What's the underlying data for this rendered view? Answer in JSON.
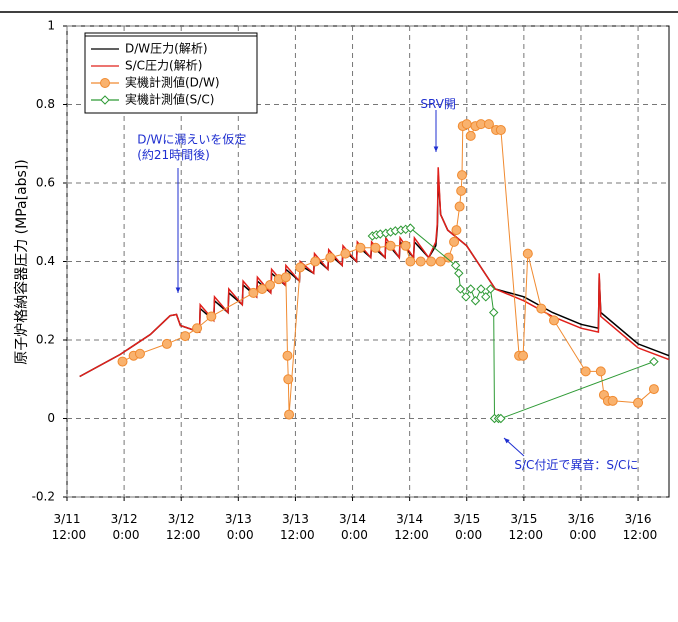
{
  "chart_data": {
    "type": "line",
    "ylabel": "原子炉格納容器圧力 (MPa[abs])",
    "xlim": [
      "3/11 12:00",
      "3/16 18:30"
    ],
    "xticks": [
      "3/11 12:00",
      "3/12 0:00",
      "3/12 12:00",
      "3/13 0:00",
      "3/13 12:00",
      "3/14 0:00",
      "3/14 12:00",
      "3/15 0:00",
      "3/15 12:00",
      "3/16 0:00",
      "3/16 12:00"
    ],
    "ylim": [
      -0.2,
      1
    ],
    "yticks": [
      -0.2,
      0,
      0.2,
      0.4,
      0.6,
      0.8,
      1
    ],
    "grid": true,
    "legend": "upper left",
    "annotations": [
      {
        "text": "SRV開",
        "x": "3/14 18:00",
        "y": 0.8
      },
      {
        "text": "D/Wに漏えいを仮定",
        "x": "3/12 12:00",
        "y": 0.71
      },
      {
        "text": "(約21時間後)",
        "x": "3/12 12:00",
        "y": 0.67
      },
      {
        "text": "S/C付近で異音：S/Cに",
        "x": "3/15 10:00",
        "y": -0.12
      }
    ],
    "series": [
      {
        "name": "D/W圧力(解析)",
        "color": "#000000",
        "marker": null,
        "x": [
          "3/11 14:40",
          "3/11 23:10",
          "3/12 5:30",
          "3/12 9:40",
          "3/12 11:00",
          "3/12 11:50",
          "3/12 15:50",
          "3/12 16:00",
          "3/12 18:50",
          "3/12 19:00",
          "3/12 21:50",
          "3/12 22:00",
          "3/13 0:50",
          "3/13 1:00",
          "3/13 3:50",
          "3/13 4:00",
          "3/13 6:50",
          "3/13 7:00",
          "3/13 9:50",
          "3/13 10:00",
          "3/13 12:50",
          "3/13 13:00",
          "3/13 15:50",
          "3/13 16:00",
          "3/13 18:50",
          "3/13 19:00",
          "3/13 21:50",
          "3/13 22:00",
          "3/14 0:50",
          "3/14 1:00",
          "3/14 3:50",
          "3/14 4:00",
          "3/14 6:50",
          "3/14 7:00",
          "3/14 9:50",
          "3/14 10:00",
          "3/14 12:50",
          "3/14 13:00",
          "3/14 16:00",
          "3/14 17:30",
          "3/14 17:50",
          "3/14 18:00",
          "3/14 18:30",
          "3/14 20:00",
          "3/14 22:00",
          "3/15 0:00",
          "3/15 6:00",
          "3/15 12:00",
          "3/15 18:00",
          "3/16 0:00",
          "3/16 3:40",
          "3/16 3:50",
          "3/16 4:10",
          "3/16 12:00",
          "3/16 18:30"
        ],
        "values": [
          0.107,
          0.163,
          0.214,
          0.262,
          0.265,
          0.237,
          0.22,
          0.28,
          0.25,
          0.3,
          0.27,
          0.32,
          0.29,
          0.34,
          0.31,
          0.35,
          0.32,
          0.37,
          0.34,
          0.38,
          0.35,
          0.39,
          0.37,
          0.41,
          0.38,
          0.42,
          0.39,
          0.43,
          0.4,
          0.44,
          0.41,
          0.44,
          0.41,
          0.45,
          0.41,
          0.45,
          0.41,
          0.45,
          0.41,
          0.44,
          0.49,
          0.62,
          0.52,
          0.48,
          0.46,
          0.44,
          0.33,
          0.31,
          0.27,
          0.24,
          0.23,
          0.36,
          0.27,
          0.19,
          0.16
        ]
      },
      {
        "name": "S/C圧力(解析)",
        "color": "#e0201b",
        "marker": null,
        "x": [
          "3/11 14:40",
          "3/11 23:10",
          "3/12 5:30",
          "3/12 9:40",
          "3/12 11:00",
          "3/12 11:50",
          "3/12 15:50",
          "3/12 16:00",
          "3/12 18:50",
          "3/12 19:00",
          "3/12 21:50",
          "3/12 22:00",
          "3/13 0:50",
          "3/13 1:00",
          "3/13 3:50",
          "3/13 4:00",
          "3/13 6:50",
          "3/13 7:00",
          "3/13 9:50",
          "3/13 10:00",
          "3/13 12:50",
          "3/13 13:00",
          "3/13 15:50",
          "3/13 16:00",
          "3/13 18:50",
          "3/13 19:00",
          "3/13 21:50",
          "3/13 22:00",
          "3/14 0:50",
          "3/14 1:00",
          "3/14 3:50",
          "3/14 4:00",
          "3/14 6:50",
          "3/14 7:00",
          "3/14 9:50",
          "3/14 10:00",
          "3/14 12:50",
          "3/14 13:00",
          "3/14 16:00",
          "3/14 17:30",
          "3/14 17:50",
          "3/14 18:00",
          "3/14 18:30",
          "3/14 20:00",
          "3/14 22:00",
          "3/15 0:00",
          "3/15 6:00",
          "3/15 12:00",
          "3/15 18:00",
          "3/16 0:00",
          "3/16 3:40",
          "3/16 3:50",
          "3/16 4:10",
          "3/16 12:00",
          "3/16 18:30"
        ],
        "values": [
          0.107,
          0.163,
          0.214,
          0.262,
          0.265,
          0.237,
          0.22,
          0.29,
          0.25,
          0.31,
          0.27,
          0.33,
          0.29,
          0.35,
          0.31,
          0.36,
          0.32,
          0.38,
          0.34,
          0.39,
          0.35,
          0.4,
          0.37,
          0.42,
          0.38,
          0.43,
          0.39,
          0.44,
          0.4,
          0.45,
          0.41,
          0.45,
          0.41,
          0.46,
          0.41,
          0.46,
          0.41,
          0.46,
          0.41,
          0.45,
          0.5,
          0.64,
          0.52,
          0.48,
          0.46,
          0.44,
          0.33,
          0.3,
          0.26,
          0.23,
          0.22,
          0.37,
          0.26,
          0.18,
          0.15
        ]
      },
      {
        "name": "実機計測値(D/W)",
        "color": "#f08a30",
        "marker": "circle",
        "x": [
          "3/11 23:40",
          "3/12 2:00",
          "3/12 3:20",
          "3/12 9:00",
          "3/12 12:50",
          "3/12 15:20",
          "3/12 18:20",
          "3/13 3:10",
          "3/13 5:00",
          "3/13 6:40",
          "3/13 8:30",
          "3/13 10:00",
          "3/13 10:20",
          "3/13 10:30",
          "3/13 10:40",
          "3/13 13:00",
          "3/13 16:10",
          "3/13 19:20",
          "3/13 22:30",
          "3/14 1:40",
          "3/14 4:50",
          "3/14 8:00",
          "3/14 11:10",
          "3/14 12:10",
          "3/14 14:20",
          "3/14 16:30",
          "3/14 18:30",
          "3/14 20:10",
          "3/14 21:20",
          "3/14 21:50",
          "3/14 22:30",
          "3/14 22:50",
          "3/14 23:00",
          "3/14 23:10",
          "3/15 0:00",
          "3/15 0:50",
          "3/15 1:50",
          "3/15 3:00",
          "3/15 4:40",
          "3/15 6:10",
          "3/15 7:10",
          "3/15 11:00",
          "3/15 11:50",
          "3/15 12:50",
          "3/15 15:40",
          "3/15 18:20",
          "3/16 1:00",
          "3/16 4:10",
          "3/16 4:50",
          "3/16 5:40",
          "3/16 6:40",
          "3/16 12:00",
          "3/16 15:20"
        ],
        "values": [
          0.145,
          0.16,
          0.165,
          0.19,
          0.21,
          0.23,
          0.26,
          0.32,
          0.33,
          0.34,
          0.355,
          0.36,
          0.16,
          0.1,
          0.01,
          0.385,
          0.4,
          0.41,
          0.42,
          0.435,
          0.435,
          0.44,
          0.44,
          0.4,
          0.4,
          0.4,
          0.4,
          0.41,
          0.45,
          0.48,
          0.54,
          0.58,
          0.62,
          0.745,
          0.75,
          0.72,
          0.745,
          0.75,
          0.75,
          0.735,
          0.735,
          0.16,
          0.16,
          0.42,
          0.28,
          0.25,
          0.12,
          0.12,
          0.06,
          0.045,
          0.045,
          0.04,
          0.075
        ]
      },
      {
        "name": "実機計測値(S/C)",
        "color": "#2e9a35",
        "marker": "diamond",
        "x": [
          "3/14 4:10",
          "3/14 5:00",
          "3/14 5:50",
          "3/14 7:00",
          "3/14 8:00",
          "3/14 9:00",
          "3/14 10:10",
          "3/14 11:10",
          "3/14 12:10",
          "3/14 21:40",
          "3/14 22:20",
          "3/14 22:40",
          "3/14 23:50",
          "3/15 0:50",
          "3/15 1:50",
          "3/15 3:00",
          "3/15 4:00",
          "3/15 5:00",
          "3/15 5:40",
          "3/15 5:50",
          "3/15 6:40",
          "3/15 7:10",
          "3/16 15:20"
        ],
        "values": [
          0.465,
          0.468,
          0.47,
          0.472,
          0.475,
          0.478,
          0.48,
          0.482,
          0.485,
          0.39,
          0.37,
          0.33,
          0.31,
          0.33,
          0.3,
          0.33,
          0.31,
          0.33,
          0.27,
          0,
          0,
          0,
          0.145
        ]
      }
    ]
  }
}
